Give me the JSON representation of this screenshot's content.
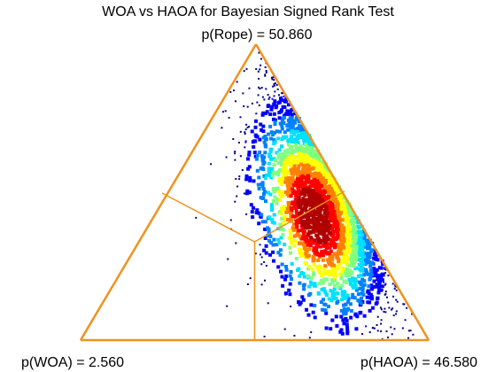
{
  "chart_data": {
    "type": "scatter",
    "subtype": "ternary-posterior-density",
    "title": "WOA vs HAOA for Bayesian Signed Rank Test",
    "vertices": {
      "top": {
        "label": "p(Rope) = 50.860",
        "name": "Rope",
        "probability_percent": 50.86
      },
      "left": {
        "label": "p(WOA) = 2.560",
        "name": "WOA",
        "probability_percent": 2.56
      },
      "right": {
        "label": "p(HAOA) = 46.580",
        "name": "HAOA",
        "probability_percent": 46.58
      }
    },
    "density_region": {
      "description": "Posterior samples concentrated along the Rope-HAOA edge; highest density near the centre of the Rope-HAOA region",
      "peak_barycentric": {
        "woa": 0.12,
        "rope": 0.42,
        "haoa": 0.46
      },
      "colormap": [
        "#00008b",
        "#0000ff",
        "#0080ff",
        "#00e0ff",
        "#80ff80",
        "#ffff00",
        "#ff8000",
        "#ff0000",
        "#b00000"
      ]
    },
    "frame_color": "#f0921e"
  }
}
